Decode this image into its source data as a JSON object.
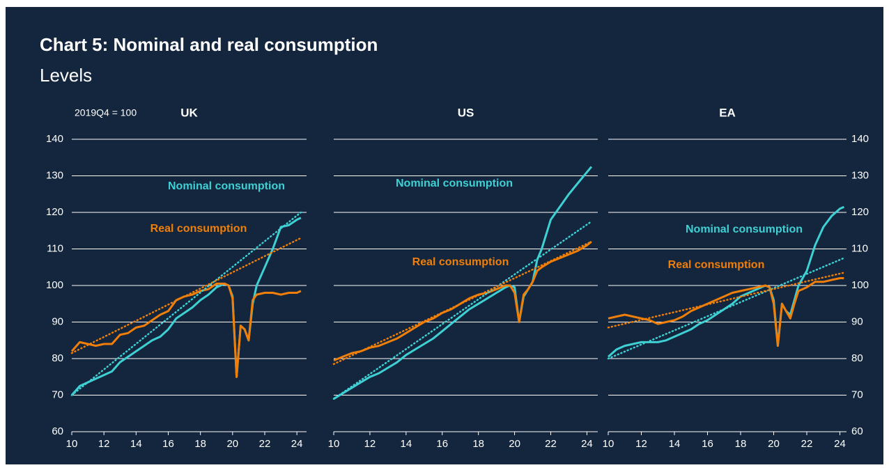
{
  "title": "Chart 5: Nominal and real consumption",
  "subtitle": "Levels",
  "y_label": "2019Q4 = 100",
  "chart_data": [
    {
      "type": "line",
      "title": "UK",
      "xlim": [
        10,
        24.6
      ],
      "ylim": [
        60,
        140
      ],
      "xticks": [
        10,
        12,
        14,
        16,
        18,
        20,
        22,
        24
      ],
      "yticks": [
        60,
        70,
        80,
        90,
        100,
        110,
        120,
        130,
        140
      ],
      "ytick_labels": "left",
      "grid": true,
      "series": [
        {
          "name": "Nominal consumption",
          "color": "#3fd0d4",
          "x": [
            10,
            10.5,
            11,
            11.5,
            12,
            12.5,
            13,
            13.5,
            14,
            14.5,
            15,
            15.5,
            16,
            16.5,
            17,
            17.5,
            18,
            18.5,
            19,
            19.5,
            19.75,
            20,
            20.25,
            20.5,
            20.75,
            21,
            21.25,
            21.5,
            22,
            22.5,
            23,
            23.5,
            24,
            24.25
          ],
          "values": [
            70,
            72.5,
            73.5,
            74.5,
            75.5,
            76.5,
            79,
            80.5,
            82,
            83.5,
            85,
            86,
            88,
            91,
            92.5,
            94,
            96,
            97.5,
            99.5,
            100.5,
            100,
            97,
            75,
            89,
            88,
            85,
            95,
            100,
            105,
            110,
            116,
            116.5,
            118,
            118.5
          ]
        },
        {
          "name": "Real consumption",
          "color": "#f07f09",
          "x": [
            10,
            10.5,
            11,
            11.5,
            12,
            12.5,
            13,
            13.5,
            14,
            14.5,
            15,
            15.5,
            16,
            16.5,
            17,
            17.5,
            18,
            18.5,
            19,
            19.5,
            19.75,
            20,
            20.25,
            20.5,
            20.75,
            21,
            21.25,
            21.5,
            22,
            22.5,
            23,
            23.5,
            24,
            24.25
          ],
          "values": [
            82,
            84.5,
            84,
            83.5,
            84,
            84,
            86.5,
            87,
            88.5,
            89,
            90.5,
            92,
            93,
            96,
            97,
            97.5,
            98.5,
            99,
            100.5,
            100.5,
            100,
            96.5,
            75,
            89,
            88,
            85,
            96,
            97.5,
            98,
            98,
            97.5,
            98,
            98,
            98.5
          ]
        },
        {
          "color": "#3fd0d4",
          "style": "dotted",
          "x": [
            10,
            24.25
          ],
          "values": [
            70,
            120
          ]
        },
        {
          "color": "#f07f09",
          "style": "dotted",
          "x": [
            10,
            24.25
          ],
          "values": [
            81.5,
            113
          ]
        }
      ]
    },
    {
      "type": "line",
      "title": "US",
      "xlim": [
        10,
        24.6
      ],
      "ylim": [
        60,
        140
      ],
      "xticks": [
        10,
        12,
        14,
        16,
        18,
        20,
        22,
        24
      ],
      "yticks": [
        60,
        70,
        80,
        90,
        100,
        110,
        120,
        130,
        140
      ],
      "ytick_labels": "none",
      "grid": true,
      "series": [
        {
          "name": "Nominal consumption",
          "color": "#3fd0d4",
          "x": [
            10,
            10.5,
            11,
            11.5,
            12,
            12.5,
            13,
            13.5,
            14,
            14.5,
            15,
            15.5,
            16,
            16.5,
            17,
            17.5,
            18,
            18.5,
            19,
            19.5,
            19.75,
            20,
            20.25,
            20.5,
            20.75,
            21,
            21.25,
            21.5,
            22,
            22.5,
            23,
            23.5,
            24,
            24.25
          ],
          "values": [
            69,
            70.5,
            72,
            73.5,
            75,
            76,
            77.5,
            79,
            81,
            82.5,
            84,
            85.5,
            87.5,
            89.5,
            91.5,
            93.5,
            95,
            96.5,
            98,
            99.5,
            100,
            99.5,
            90,
            97,
            99,
            101,
            107,
            110,
            118,
            121.5,
            125,
            128,
            131,
            132.5
          ]
        },
        {
          "name": "Real consumption",
          "color": "#f07f09",
          "x": [
            10,
            10.5,
            11,
            11.5,
            12,
            12.5,
            13,
            13.5,
            14,
            14.5,
            15,
            15.5,
            16,
            16.5,
            17,
            17.5,
            18,
            18.5,
            19,
            19.5,
            19.75,
            20,
            20.25,
            20.5,
            20.75,
            21,
            21.25,
            21.5,
            22,
            22.5,
            23,
            23.5,
            24,
            24.25
          ],
          "values": [
            79.5,
            80.5,
            81.5,
            82,
            83,
            83.5,
            84.5,
            85.5,
            87,
            88.5,
            90,
            91,
            92.5,
            93.5,
            95,
            96.5,
            97.5,
            98,
            99,
            100,
            100,
            98,
            90,
            97.5,
            99,
            101,
            104,
            105,
            106.5,
            107.5,
            108.5,
            109.5,
            111,
            112
          ]
        },
        {
          "color": "#3fd0d4",
          "style": "dotted",
          "x": [
            10,
            24.25
          ],
          "values": [
            69,
            117.5
          ]
        },
        {
          "color": "#f07f09",
          "style": "dotted",
          "x": [
            10,
            24.25
          ],
          "values": [
            78.5,
            112
          ]
        }
      ]
    },
    {
      "type": "line",
      "title": "EA",
      "xlim": [
        10,
        24.4
      ],
      "ylim": [
        60,
        140
      ],
      "xticks": [
        10,
        12,
        14,
        16,
        18,
        20,
        22,
        24
      ],
      "yticks": [
        60,
        70,
        80,
        90,
        100,
        110,
        120,
        130,
        140
      ],
      "ytick_labels": "right",
      "grid": true,
      "series": [
        {
          "name": "Nominal consumption",
          "color": "#3fd0d4",
          "x": [
            10,
            10.5,
            11,
            11.5,
            12,
            12.5,
            13,
            13.5,
            14,
            14.5,
            15,
            15.5,
            16,
            16.5,
            17,
            17.5,
            18,
            18.5,
            19,
            19.5,
            19.75,
            20,
            20.25,
            20.5,
            20.75,
            21,
            21.25,
            21.5,
            22,
            22.5,
            23,
            23.5,
            24,
            24.25
          ],
          "values": [
            80.5,
            82.5,
            83.5,
            84,
            84.5,
            84.5,
            84.5,
            85,
            86,
            87,
            88,
            89.5,
            90.5,
            92,
            93.5,
            95,
            97,
            98,
            99,
            100,
            99.5,
            96,
            83.5,
            95,
            93,
            92,
            96,
            100,
            104,
            111,
            116,
            119,
            121,
            121.5
          ]
        },
        {
          "name": "Real consumption",
          "color": "#f07f09",
          "x": [
            10,
            10.5,
            11,
            11.5,
            12,
            12.5,
            13,
            13.5,
            14,
            14.5,
            15,
            15.5,
            16,
            16.5,
            17,
            17.5,
            18,
            18.5,
            19,
            19.5,
            19.75,
            20,
            20.25,
            20.5,
            20.75,
            21,
            21.25,
            21.5,
            22,
            22.5,
            23,
            23.5,
            24,
            24.25
          ],
          "values": [
            91,
            91.5,
            92,
            91.5,
            91,
            90.5,
            89.5,
            90,
            90.5,
            91.5,
            93,
            94,
            95,
            96,
            97,
            98,
            98.5,
            99,
            99.5,
            100,
            99.5,
            95,
            83.5,
            95,
            93,
            91,
            95,
            98.5,
            99.5,
            101,
            101,
            101.5,
            102,
            102
          ]
        },
        {
          "color": "#3fd0d4",
          "style": "dotted",
          "x": [
            10,
            24.25
          ],
          "values": [
            80,
            107.5
          ]
        },
        {
          "color": "#f07f09",
          "style": "dotted",
          "x": [
            10,
            24.25
          ],
          "values": [
            88.5,
            103.5
          ]
        }
      ]
    }
  ]
}
